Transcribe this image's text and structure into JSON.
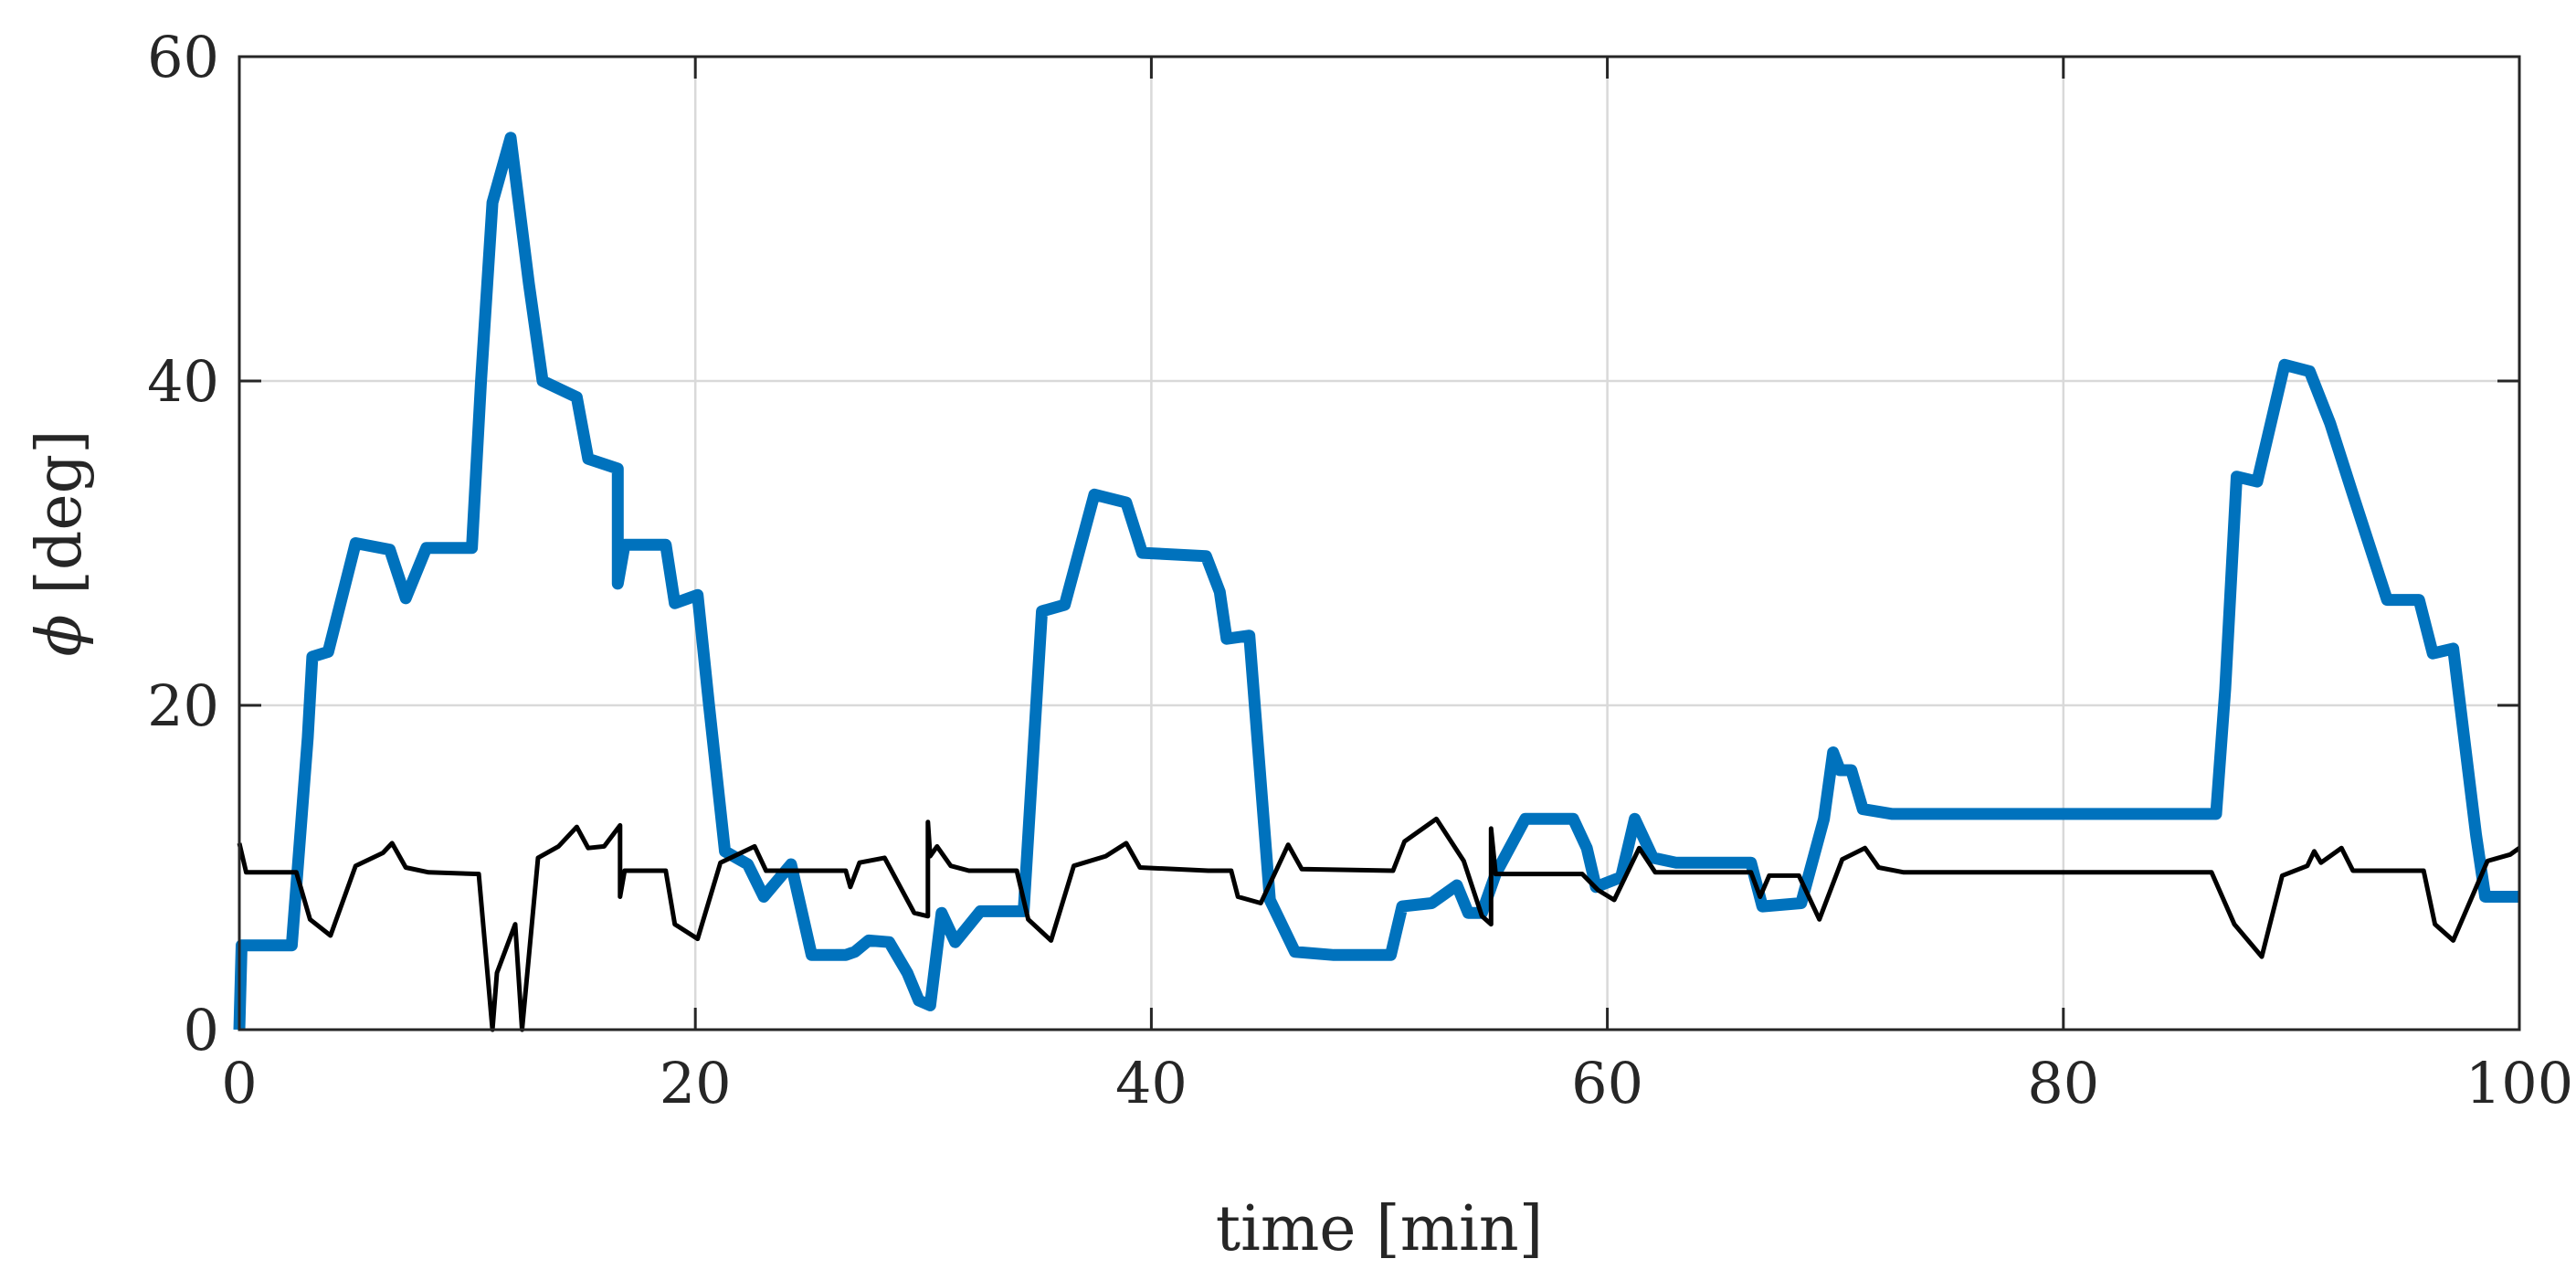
{
  "chart_data": {
    "type": "line",
    "title": "",
    "xlabel": "time [min]",
    "ylabel_symbol": "ϕ",
    "ylabel_unit": "[deg]",
    "xlim": [
      0,
      100
    ],
    "ylim": [
      0,
      60
    ],
    "xticks": [
      0,
      20,
      40,
      60,
      80,
      100
    ],
    "yticks": [
      0,
      20,
      40,
      60
    ],
    "xtick_labels": [
      "0",
      "20",
      "40",
      "60",
      "80",
      "100"
    ],
    "ytick_labels": [
      "0",
      "20",
      "40",
      "60"
    ],
    "grid": true,
    "legend": "none",
    "series": [
      {
        "color": "#0072BD",
        "width": "thick",
        "points": [
          [
            0.0,
            0.0
          ],
          [
            0.1,
            5.2
          ],
          [
            2.3,
            5.2
          ],
          [
            3.0,
            18.0
          ],
          [
            3.2,
            23.0
          ],
          [
            3.9,
            23.3
          ],
          [
            5.1,
            30.0
          ],
          [
            6.6,
            29.6
          ],
          [
            7.3,
            26.6
          ],
          [
            8.2,
            29.7
          ],
          [
            10.2,
            29.7
          ],
          [
            10.6,
            40.0
          ],
          [
            11.1,
            51.0
          ],
          [
            11.9,
            55.0
          ],
          [
            12.7,
            46.0
          ],
          [
            13.3,
            40.0
          ],
          [
            14.8,
            39.0
          ],
          [
            15.3,
            35.2
          ],
          [
            16.6,
            34.6
          ],
          [
            16.6,
            27.5
          ],
          [
            16.9,
            29.9
          ],
          [
            18.7,
            29.9
          ],
          [
            19.1,
            26.3
          ],
          [
            20.1,
            26.8
          ],
          [
            20.6,
            20.0
          ],
          [
            21.3,
            11.0
          ],
          [
            22.3,
            10.2
          ],
          [
            23.0,
            8.2
          ],
          [
            24.2,
            10.2
          ],
          [
            25.1,
            4.6
          ],
          [
            26.6,
            4.6
          ],
          [
            27.0,
            4.8
          ],
          [
            27.6,
            5.5
          ],
          [
            28.5,
            5.4
          ],
          [
            29.3,
            3.5
          ],
          [
            29.8,
            1.8
          ],
          [
            30.3,
            1.5
          ],
          [
            30.8,
            7.2
          ],
          [
            31.4,
            5.4
          ],
          [
            32.5,
            7.3
          ],
          [
            34.4,
            7.3
          ],
          [
            35.2,
            25.8
          ],
          [
            36.2,
            26.2
          ],
          [
            37.5,
            33.0
          ],
          [
            38.9,
            32.5
          ],
          [
            39.6,
            29.4
          ],
          [
            42.4,
            29.2
          ],
          [
            43.0,
            27.0
          ],
          [
            43.3,
            24.1
          ],
          [
            44.3,
            24.3
          ],
          [
            45.2,
            8.0
          ],
          [
            46.3,
            4.8
          ],
          [
            48.0,
            4.6
          ],
          [
            50.5,
            4.6
          ],
          [
            51.0,
            7.6
          ],
          [
            52.3,
            7.8
          ],
          [
            53.4,
            8.9
          ],
          [
            53.9,
            7.2
          ],
          [
            54.5,
            7.2
          ],
          [
            55.1,
            9.6
          ],
          [
            56.4,
            13.0
          ],
          [
            58.5,
            13.0
          ],
          [
            59.1,
            11.2
          ],
          [
            59.5,
            8.8
          ],
          [
            60.6,
            9.4
          ],
          [
            61.2,
            13.0
          ],
          [
            62.0,
            10.6
          ],
          [
            63.0,
            10.3
          ],
          [
            66.3,
            10.3
          ],
          [
            66.8,
            7.6
          ],
          [
            68.5,
            7.8
          ],
          [
            69.5,
            13.0
          ],
          [
            69.9,
            17.1
          ],
          [
            70.2,
            16.0
          ],
          [
            70.7,
            16.0
          ],
          [
            71.2,
            13.6
          ],
          [
            72.5,
            13.3
          ],
          [
            77.0,
            13.3
          ],
          [
            86.7,
            13.3
          ],
          [
            87.1,
            21.0
          ],
          [
            87.6,
            34.1
          ],
          [
            88.5,
            33.8
          ],
          [
            89.7,
            41.0
          ],
          [
            90.8,
            40.6
          ],
          [
            91.7,
            37.4
          ],
          [
            92.7,
            33.0
          ],
          [
            94.2,
            26.5
          ],
          [
            95.6,
            26.5
          ],
          [
            96.2,
            23.2
          ],
          [
            97.1,
            23.5
          ],
          [
            98.1,
            12.0
          ],
          [
            98.5,
            8.2
          ],
          [
            100.0,
            8.2
          ]
        ]
      },
      {
        "color": "#000000",
        "width": "thin",
        "points": [
          [
            0.0,
            11.5
          ],
          [
            0.3,
            9.7
          ],
          [
            2.5,
            9.7
          ],
          [
            3.1,
            6.8
          ],
          [
            4.0,
            5.8
          ],
          [
            5.1,
            10.1
          ],
          [
            6.3,
            10.9
          ],
          [
            6.7,
            11.5
          ],
          [
            7.3,
            10.0
          ],
          [
            8.3,
            9.7
          ],
          [
            10.5,
            9.6
          ],
          [
            11.1,
            0.0
          ],
          [
            11.3,
            3.5
          ],
          [
            12.1,
            6.5
          ],
          [
            12.4,
            0.0
          ],
          [
            13.1,
            10.6
          ],
          [
            14.0,
            11.3
          ],
          [
            14.8,
            12.5
          ],
          [
            15.3,
            11.2
          ],
          [
            16.0,
            11.3
          ],
          [
            16.7,
            12.6
          ],
          [
            16.7,
            8.2
          ],
          [
            16.9,
            9.8
          ],
          [
            18.7,
            9.8
          ],
          [
            19.1,
            6.5
          ],
          [
            20.1,
            5.6
          ],
          [
            21.1,
            10.3
          ],
          [
            22.6,
            11.3
          ],
          [
            23.1,
            9.8
          ],
          [
            26.6,
            9.8
          ],
          [
            26.8,
            8.8
          ],
          [
            27.2,
            10.3
          ],
          [
            28.3,
            10.6
          ],
          [
            29.6,
            7.2
          ],
          [
            30.2,
            7.0
          ],
          [
            30.2,
            12.8
          ],
          [
            30.3,
            10.7
          ],
          [
            30.6,
            11.3
          ],
          [
            31.2,
            10.1
          ],
          [
            32.0,
            9.8
          ],
          [
            34.1,
            9.8
          ],
          [
            34.6,
            6.8
          ],
          [
            35.6,
            5.5
          ],
          [
            36.6,
            10.1
          ],
          [
            38.0,
            10.7
          ],
          [
            38.9,
            11.5
          ],
          [
            39.5,
            10.0
          ],
          [
            42.5,
            9.8
          ],
          [
            43.5,
            9.8
          ],
          [
            43.8,
            8.2
          ],
          [
            44.8,
            7.8
          ],
          [
            46.0,
            11.4
          ],
          [
            46.6,
            9.9
          ],
          [
            50.6,
            9.8
          ],
          [
            51.1,
            11.6
          ],
          [
            52.5,
            13.0
          ],
          [
            53.7,
            10.4
          ],
          [
            54.5,
            7.0
          ],
          [
            54.9,
            6.5
          ],
          [
            54.9,
            12.4
          ],
          [
            55.1,
            9.6
          ],
          [
            58.9,
            9.6
          ],
          [
            59.6,
            8.6
          ],
          [
            60.3,
            8.0
          ],
          [
            61.4,
            11.2
          ],
          [
            62.1,
            9.7
          ],
          [
            66.3,
            9.7
          ],
          [
            66.7,
            8.2
          ],
          [
            67.1,
            9.5
          ],
          [
            68.4,
            9.5
          ],
          [
            69.3,
            6.8
          ],
          [
            70.3,
            10.5
          ],
          [
            71.3,
            11.2
          ],
          [
            71.9,
            10.0
          ],
          [
            73.0,
            9.7
          ],
          [
            86.5,
            9.7
          ],
          [
            87.5,
            6.5
          ],
          [
            88.7,
            4.5
          ],
          [
            89.6,
            9.5
          ],
          [
            90.7,
            10.1
          ],
          [
            91.0,
            11.0
          ],
          [
            91.3,
            10.3
          ],
          [
            92.2,
            11.2
          ],
          [
            92.7,
            9.8
          ],
          [
            95.8,
            9.8
          ],
          [
            96.3,
            6.5
          ],
          [
            97.1,
            5.5
          ],
          [
            98.6,
            10.4
          ],
          [
            99.6,
            10.8
          ],
          [
            100.0,
            11.2
          ]
        ]
      }
    ]
  }
}
